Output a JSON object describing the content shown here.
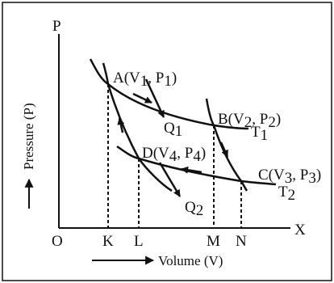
{
  "axes": {
    "y_symbol": "P",
    "x_symbol": "X",
    "origin": "O",
    "y_title": "Pressure (P)",
    "x_title": "Volume (V)"
  },
  "ticks": [
    "K",
    "L",
    "M",
    "N"
  ],
  "points": {
    "A": {
      "name": "A(V",
      "s1": "1",
      "mid": ", P",
      "s2": "1",
      "end": ")"
    },
    "B": {
      "name": "B(V",
      "s1": "2",
      "mid": ", P",
      "s2": "2",
      "end": ")"
    },
    "C": {
      "name": "C(V",
      "s1": "3",
      "mid": ", P",
      "s2": "3",
      "end": ")"
    },
    "D": {
      "name": "D(V",
      "s1": "4",
      "mid": ", P",
      "s2": "4",
      "end": ")"
    }
  },
  "heat": {
    "q1": {
      "base": "Q",
      "sub": "1"
    },
    "q2": {
      "base": "Q",
      "sub": "2"
    }
  },
  "isotherms": {
    "t1": {
      "base": "T",
      "sub": "1"
    },
    "t2": {
      "base": "T",
      "sub": "2"
    }
  },
  "colors": {
    "ink": "#111111",
    "frame": "#111111",
    "background": "#ffffff"
  }
}
